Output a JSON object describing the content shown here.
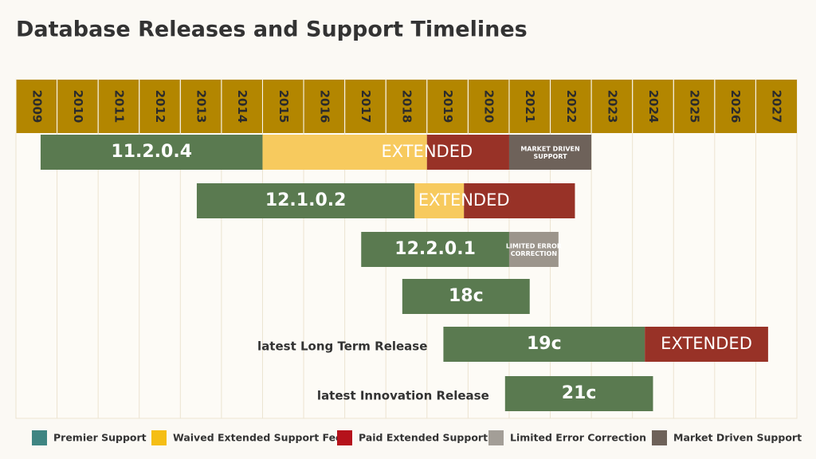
{
  "chart_data": {
    "type": "timeline",
    "title": "Database Releases and Support Timelines",
    "xlim": [
      2009,
      2028
    ],
    "xticks": [
      2009,
      2010,
      2011,
      2012,
      2013,
      2014,
      2015,
      2016,
      2017,
      2018,
      2019,
      2020,
      2021,
      2022,
      2023,
      2024,
      2025,
      2026,
      2027
    ],
    "series": [
      {
        "name": "Premier Support",
        "color": "#3f8582",
        "bar_color": "#5a7a50"
      },
      {
        "name": "Waived Extended Support Fee",
        "color": "#f5be14",
        "bar_color": "#f7ca5e"
      },
      {
        "name": "Paid Extended Support",
        "color": "#b5121b",
        "bar_color": "#983227"
      },
      {
        "name": "Limited Error Correction",
        "color": "#a39e97",
        "bar_color": "#9c958c"
      },
      {
        "name": "Market Driven Support",
        "color": "#6e6259",
        "bar_color": "#6e625a"
      }
    ],
    "releases": [
      {
        "name": "11.2.0.4",
        "segments": [
          {
            "series": 0,
            "start": 2009.6,
            "end": 2015.0
          },
          {
            "series": 1,
            "start": 2015.0,
            "end": 2019.0,
            "text": "EXTENDED"
          },
          {
            "series": 2,
            "start": 2019.0,
            "end": 2021.0
          },
          {
            "series": 4,
            "start": 2021.0,
            "end": 2023.0,
            "text": "MARKET DRIVEN SUPPORT"
          }
        ]
      },
      {
        "name": "12.1.0.2",
        "segments": [
          {
            "series": 0,
            "start": 2013.4,
            "end": 2018.7
          },
          {
            "series": 1,
            "start": 2018.7,
            "end": 2019.9,
            "text": "EXTENDED"
          },
          {
            "series": 2,
            "start": 2019.9,
            "end": 2022.6
          }
        ]
      },
      {
        "name": "12.2.0.1",
        "segments": [
          {
            "series": 0,
            "start": 2017.4,
            "end": 2021.0
          },
          {
            "series": 3,
            "start": 2021.0,
            "end": 2022.2,
            "text": "LIMITED ERROR CORRECTION"
          }
        ]
      },
      {
        "name": "18c",
        "segments": [
          {
            "series": 0,
            "start": 2018.4,
            "end": 2021.5
          }
        ]
      },
      {
        "name": "19c",
        "label": "latest Long Term Release",
        "segments": [
          {
            "series": 0,
            "start": 2019.4,
            "end": 2024.3
          },
          {
            "series": 2,
            "start": 2024.3,
            "end": 2027.3,
            "text": "EXTENDED"
          }
        ]
      },
      {
        "name": "21c",
        "label": "latest Innovation Release",
        "segments": [
          {
            "series": 0,
            "start": 2020.9,
            "end": 2024.5
          }
        ]
      }
    ]
  }
}
